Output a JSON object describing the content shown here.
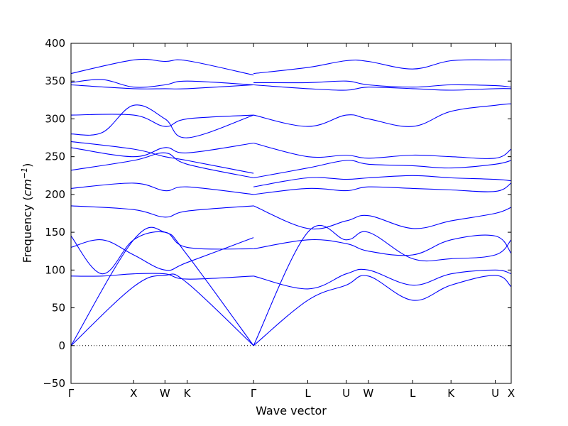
{
  "chart_data": {
    "type": "line",
    "title": "",
    "xlabel": "Wave vector",
    "ylabel_main": "Frequency (",
    "ylabel_unit_base": "cm",
    "ylabel_unit_sup": "−1",
    "ylabel_close": ")",
    "ylim": [
      -50,
      400
    ],
    "ylim_ticks": [
      -50,
      0,
      50,
      100,
      150,
      200,
      250,
      300,
      350,
      400
    ],
    "y_tick_labels": [
      "−50",
      "0",
      "50",
      "100",
      "150",
      "200",
      "250",
      "300",
      "350",
      "400"
    ],
    "grid": false,
    "zero_line": "dotted",
    "line_color": "#0000ff",
    "k_points": [
      {
        "label": "Γ",
        "x": 0.0
      },
      {
        "label": "X",
        "x": 1.0
      },
      {
        "label": "W",
        "x": 1.5
      },
      {
        "label": "K",
        "x": 1.854
      },
      {
        "label": "Γ",
        "x": 2.914
      },
      {
        "label": "L",
        "x": 3.78
      },
      {
        "label": "U",
        "x": 4.393
      },
      {
        "label": "W",
        "x": 4.747
      },
      {
        "label": "L",
        "x": 5.454
      },
      {
        "label": "K",
        "x": 6.066
      },
      {
        "label": "U",
        "x": 6.773
      },
      {
        "label": "X",
        "x": 7.027
      }
    ],
    "series": [
      {
        "x": [
          0,
          1.0,
          1.5,
          1.854,
          2.914
        ],
        "values": [
          0,
          78,
          93,
          83,
          0
        ]
      },
      {
        "x": [
          0,
          1.0,
          1.5,
          1.854,
          2.914
        ],
        "values": [
          0,
          140,
          150,
          120,
          0
        ]
      },
      {
        "x": [
          2.914,
          3.78,
          4.393,
          4.747,
          5.454,
          6.066,
          6.773,
          7.027
        ],
        "values": [
          0,
          60,
          80,
          92,
          60,
          80,
          93,
          78
        ]
      },
      {
        "x": [
          2.914,
          3.78,
          4.393,
          4.747,
          5.454,
          6.066,
          6.773,
          7.027
        ],
        "values": [
          0,
          150,
          140,
          150,
          115,
          115,
          120,
          140
        ]
      },
      {
        "x": [
          0,
          0.5,
          1.0,
          1.5,
          1.854,
          2.914
        ],
        "values": [
          92,
          92,
          95,
          95,
          88,
          92
        ]
      },
      {
        "x": [
          0,
          0.5,
          1.0,
          1.5,
          1.854,
          2.914
        ],
        "values": [
          130,
          140,
          120,
          100,
          110,
          143
        ]
      },
      {
        "x": [
          0,
          0.5,
          1.0,
          1.5,
          1.854,
          2.914
        ],
        "values": [
          145,
          95,
          140,
          150,
          130,
          128
        ]
      },
      {
        "x": [
          0,
          1.0,
          1.5,
          1.854,
          2.914
        ],
        "values": [
          185,
          180,
          170,
          178,
          185
        ]
      },
      {
        "x": [
          0,
          1.0,
          1.5,
          1.854,
          2.914
        ],
        "values": [
          208,
          215,
          205,
          210,
          200
        ]
      },
      {
        "x": [
          0,
          1.0,
          1.5,
          1.854,
          2.914
        ],
        "values": [
          232,
          245,
          255,
          240,
          222
        ]
      },
      {
        "x": [
          0,
          1.0,
          1.5,
          1.854,
          2.914
        ],
        "values": [
          262,
          250,
          262,
          255,
          268
        ]
      },
      {
        "x": [
          0,
          1.0,
          1.5,
          1.854,
          2.914
        ],
        "values": [
          270,
          260,
          250,
          245,
          228
        ]
      },
      {
        "x": [
          0,
          0.5,
          1.0,
          1.5,
          1.854,
          2.914
        ],
        "values": [
          280,
          282,
          318,
          300,
          275,
          305
        ]
      },
      {
        "x": [
          0,
          1.0,
          1.5,
          1.854,
          2.914
        ],
        "values": [
          305,
          305,
          290,
          300,
          305
        ]
      },
      {
        "x": [
          0,
          1.0,
          1.5,
          1.854,
          2.914
        ],
        "values": [
          345,
          340,
          340,
          340,
          345
        ]
      },
      {
        "x": [
          0,
          0.5,
          1.0,
          1.5,
          1.854,
          2.914
        ],
        "values": [
          348,
          352,
          342,
          345,
          350,
          345
        ]
      },
      {
        "x": [
          0,
          1.0,
          1.5,
          1.854,
          2.914
        ],
        "values": [
          360,
          378,
          376,
          377,
          358
        ]
      },
      {
        "x": [
          2.914,
          3.78,
          4.393,
          4.747,
          5.454,
          6.066,
          6.773,
          7.027
        ],
        "values": [
          92,
          75,
          95,
          100,
          80,
          95,
          100,
          95
        ]
      },
      {
        "x": [
          2.914,
          3.78,
          4.393,
          4.747,
          5.454,
          6.066,
          6.773,
          7.027
        ],
        "values": [
          128,
          140,
          135,
          125,
          120,
          140,
          145,
          122
        ]
      },
      {
        "x": [
          2.914,
          3.78,
          4.393,
          4.747,
          5.454,
          6.066,
          6.773,
          7.027
        ],
        "values": [
          185,
          155,
          165,
          172,
          155,
          165,
          175,
          183
        ]
      },
      {
        "x": [
          2.914,
          3.78,
          4.393,
          4.747,
          5.454,
          6.066,
          6.773,
          7.027
        ],
        "values": [
          200,
          208,
          205,
          210,
          208,
          206,
          204,
          215
        ]
      },
      {
        "x": [
          2.914,
          3.78,
          4.393,
          4.747,
          5.454,
          6.066,
          6.773,
          7.027
        ],
        "values": [
          210,
          222,
          220,
          222,
          225,
          222,
          220,
          218
        ]
      },
      {
        "x": [
          2.914,
          3.78,
          4.393,
          4.747,
          5.454,
          6.066,
          6.773,
          7.027
        ],
        "values": [
          222,
          235,
          245,
          240,
          238,
          235,
          240,
          245
        ]
      },
      {
        "x": [
          2.914,
          3.78,
          4.393,
          4.747,
          5.454,
          6.066,
          6.773,
          7.027
        ],
        "values": [
          268,
          250,
          252,
          248,
          252,
          250,
          248,
          260
        ]
      },
      {
        "x": [
          2.914,
          3.78,
          4.393,
          4.747,
          5.454,
          6.066,
          6.773,
          7.027
        ],
        "values": [
          305,
          290,
          305,
          300,
          290,
          310,
          318,
          320
        ]
      },
      {
        "x": [
          2.914,
          3.78,
          4.393,
          4.747,
          5.454,
          6.066,
          6.773,
          7.027
        ],
        "values": [
          345,
          340,
          338,
          342,
          340,
          338,
          340,
          340
        ]
      },
      {
        "x": [
          2.914,
          3.78,
          4.393,
          4.747,
          5.454,
          6.066,
          6.773,
          7.027
        ],
        "values": [
          348,
          348,
          350,
          345,
          342,
          345,
          344,
          342
        ]
      },
      {
        "x": [
          2.914,
          3.78,
          4.393,
          4.747,
          5.454,
          6.066,
          6.773,
          7.027
        ],
        "values": [
          360,
          368,
          377,
          376,
          366,
          377,
          378,
          378
        ]
      }
    ]
  }
}
